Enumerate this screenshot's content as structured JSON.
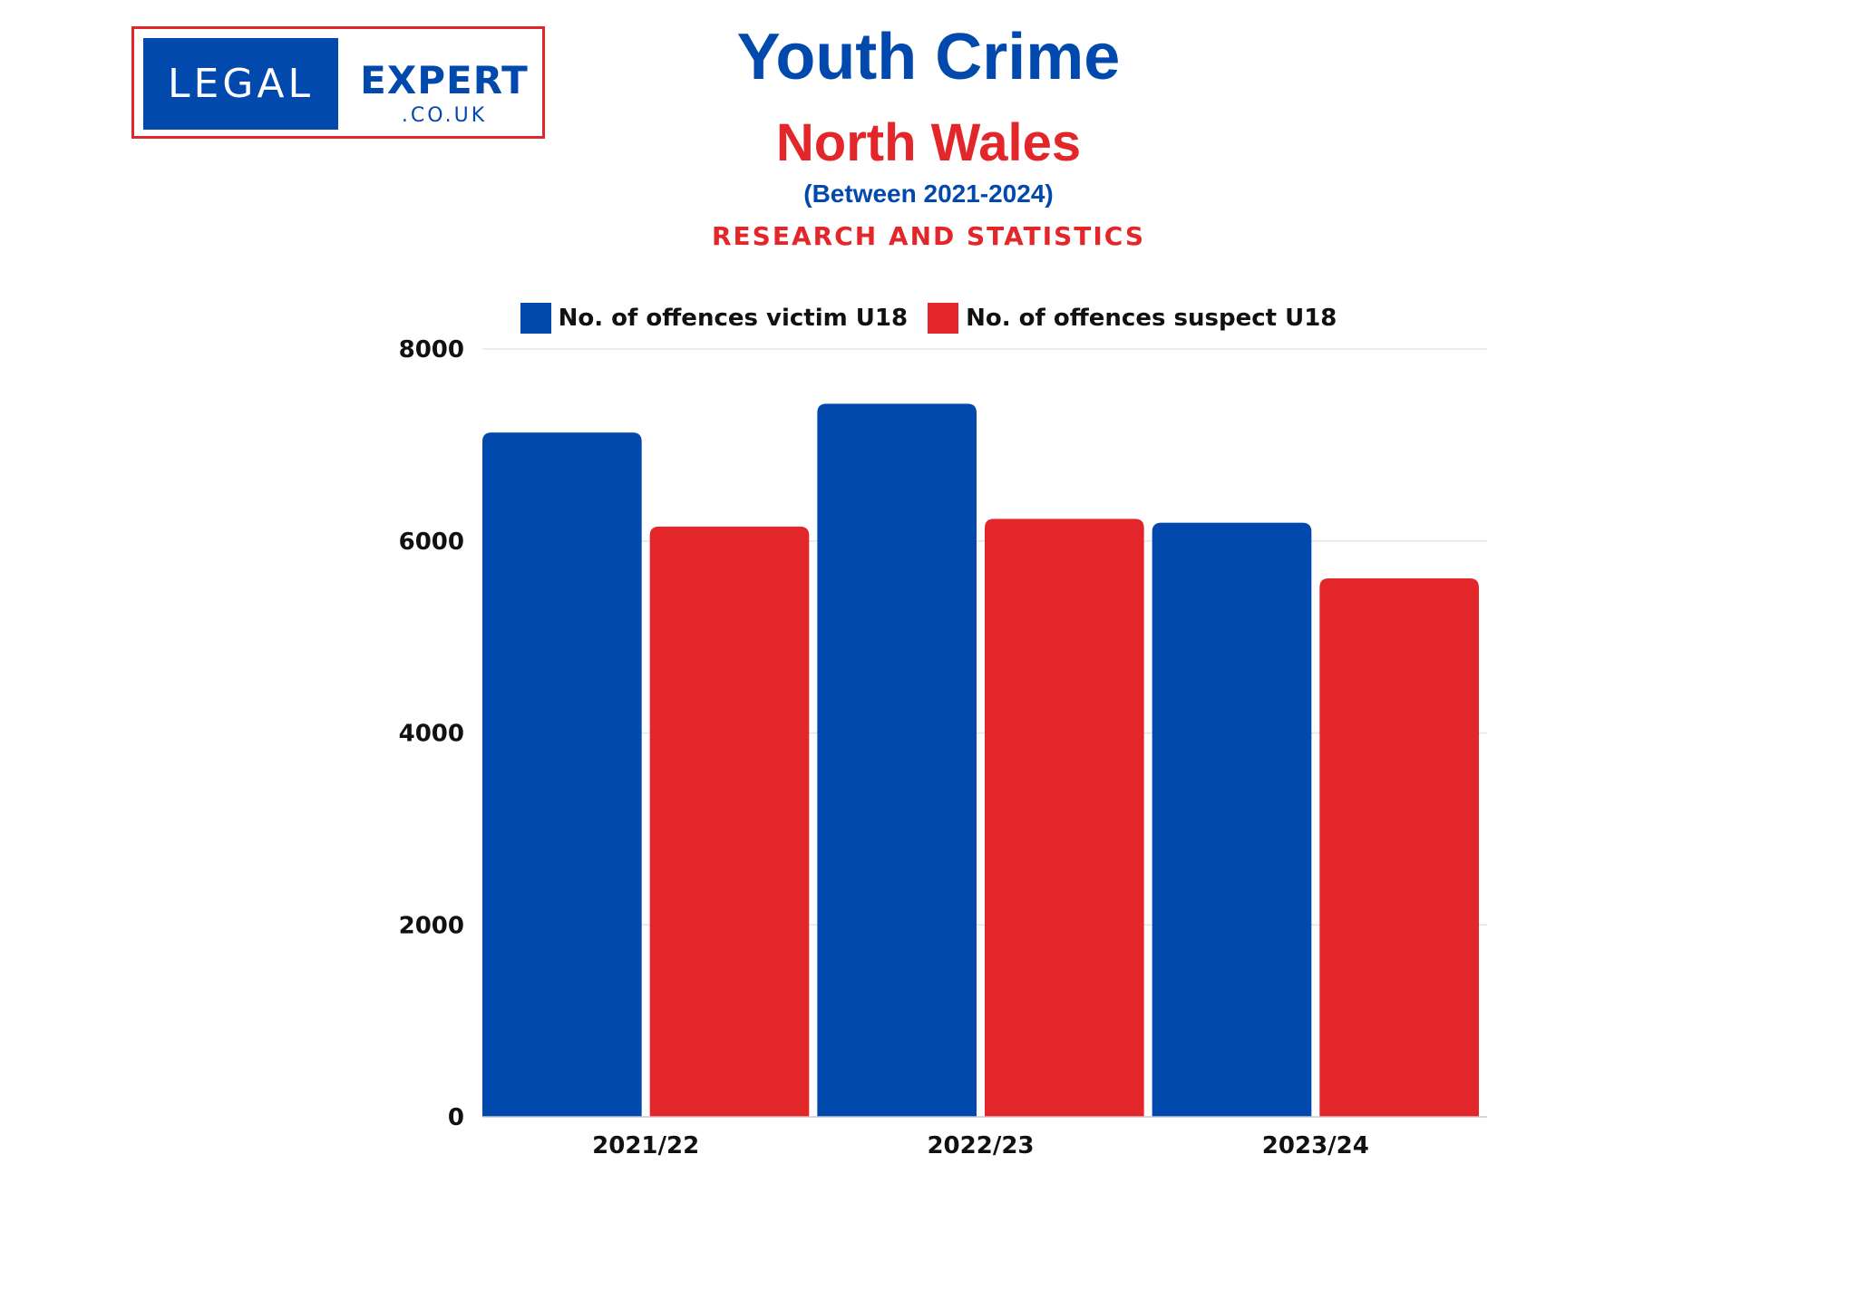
{
  "logo": {
    "left_text": "LEGAL",
    "right_text": "EXPERT",
    "domain": ".CO.UK"
  },
  "header": {
    "title": "Youth Crime",
    "subtitle": "North Wales",
    "period": "(Between 2021-2024)",
    "tagline": "RESEARCH AND STATISTICS"
  },
  "colors": {
    "victim": "#0249ad",
    "suspect": "#e3262a",
    "grid": "#e6e6e6"
  },
  "chart_data": {
    "type": "bar",
    "categories": [
      "2021/22",
      "2022/23",
      "2023/24"
    ],
    "series": [
      {
        "name": "No. of offences victim U18",
        "values": [
          7130,
          7430,
          6190
        ]
      },
      {
        "name": "No. of offences suspect U18",
        "values": [
          6150,
          6230,
          5610
        ]
      }
    ],
    "ylim": [
      0,
      8000
    ],
    "yticks": [
      0,
      2000,
      4000,
      6000,
      8000
    ],
    "grid": true,
    "legend": "top"
  }
}
